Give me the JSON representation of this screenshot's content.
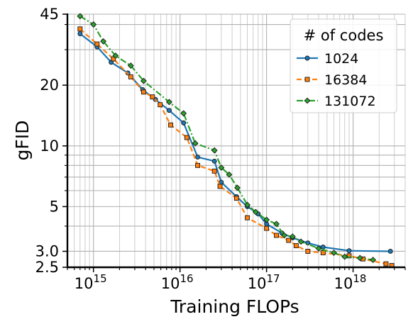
{
  "chart_data": {
    "type": "line",
    "xlabel": "Training FLOPs",
    "ylabel": "gFID",
    "xscale": "log",
    "yscale": "log",
    "xlim": [
      500000000000000.0,
      4e+18
    ],
    "ylim": [
      2.5,
      45
    ],
    "grid": true,
    "legend_title": "# of codes",
    "legend_position": "top-right",
    "x_tick_labels": [
      {
        "value": 1000000000000000.0,
        "base": "10",
        "exp": "15"
      },
      {
        "value": 1e+16,
        "base": "10",
        "exp": "16"
      },
      {
        "value": 1e+17,
        "base": "10",
        "exp": "17"
      },
      {
        "value": 1e+18,
        "base": "10",
        "exp": "18"
      }
    ],
    "y_tick_labels": [
      {
        "value": 45,
        "label": "45"
      },
      {
        "value": 20,
        "label": "20"
      },
      {
        "value": 10,
        "label": "10"
      },
      {
        "value": 5,
        "label": "5"
      },
      {
        "value": 3.0,
        "label": "3.0"
      },
      {
        "value": 2.5,
        "label": "2.5"
      }
    ],
    "series": [
      {
        "name": "1024",
        "color": "#1f77b4",
        "line_style": "solid",
        "marker": "circle",
        "points": [
          [
            700000000000000.0,
            36
          ],
          [
            1100000000000000.0,
            31
          ],
          [
            1600000000000000.0,
            26
          ],
          [
            2500000000000000.0,
            23
          ],
          [
            3700000000000000.0,
            19
          ],
          [
            5200000000000000.0,
            17
          ],
          [
            7500000000000000.0,
            15
          ],
          [
            1.1e+16,
            13
          ],
          [
            1.6e+16,
            8.8
          ],
          [
            2.5e+16,
            8.4
          ],
          [
            3e+16,
            6.6
          ],
          [
            4.5e+16,
            5.6
          ],
          [
            6e+16,
            5.0
          ],
          [
            8e+16,
            4.6
          ],
          [
            1e+17,
            4.1
          ],
          [
            1.5e+17,
            3.7
          ],
          [
            2e+17,
            3.5
          ],
          [
            3e+17,
            3.3
          ],
          [
            4.5e+17,
            3.15
          ],
          [
            9e+17,
            3.02
          ],
          [
            2.7e+18,
            3.0
          ]
        ]
      },
      {
        "name": "16384",
        "color": "#ff7f0e",
        "line_style": "dashed",
        "marker": "square",
        "points": [
          [
            700000000000000.0,
            38
          ],
          [
            1100000000000000.0,
            32
          ],
          [
            1700000000000000.0,
            27
          ],
          [
            2700000000000000.0,
            22
          ],
          [
            3800000000000000.0,
            18.5
          ],
          [
            4800000000000000.0,
            17.5
          ],
          [
            5900000000000000.0,
            16
          ],
          [
            7800000000000000.0,
            12.7
          ],
          [
            1.2e+16,
            11
          ],
          [
            1.6e+16,
            8
          ],
          [
            2.5e+16,
            7.5
          ],
          [
            2.9e+16,
            6.3
          ],
          [
            4.5e+16,
            5.5
          ],
          [
            6e+16,
            4.4
          ],
          [
            1e+17,
            3.9
          ],
          [
            1.3e+17,
            3.6
          ],
          [
            1.8e+17,
            3.4
          ],
          [
            2.2e+17,
            3.2
          ],
          [
            3e+17,
            3.0
          ],
          [
            4.5e+17,
            2.95
          ],
          [
            9e+17,
            2.85
          ],
          [
            1.3e+18,
            2.75
          ],
          [
            2.4e+18,
            2.6
          ],
          [
            2.8e+18,
            2.55
          ]
        ]
      },
      {
        "name": "131072",
        "color": "#2ca02c",
        "line_style": "dashdot",
        "marker": "diamond",
        "points": [
          [
            700000000000000.0,
            44
          ],
          [
            1000000000000000.0,
            40
          ],
          [
            1300000000000000.0,
            33
          ],
          [
            1800000000000000.0,
            28
          ],
          [
            2700000000000000.0,
            25
          ],
          [
            3800000000000000.0,
            21
          ],
          [
            7500000000000000.0,
            16.5
          ],
          [
            1.1e+16,
            14.5
          ],
          [
            1.5e+16,
            10.3
          ],
          [
            2.5e+16,
            9.5
          ],
          [
            3e+16,
            7.8
          ],
          [
            3.7e+16,
            7.2
          ],
          [
            4.6e+16,
            6.2
          ],
          [
            6e+16,
            5.1
          ],
          [
            7.5e+16,
            4.7
          ],
          [
            1e+17,
            4.3
          ],
          [
            1.3e+17,
            4.1
          ],
          [
            1.6e+17,
            3.6
          ],
          [
            2e+17,
            3.55
          ],
          [
            2.5e+17,
            3.35
          ],
          [
            4e+17,
            3.1
          ],
          [
            6e+17,
            2.95
          ],
          [
            8e+17,
            2.82
          ],
          [
            1.2e+18,
            2.78
          ],
          [
            1.7e+18,
            2.72
          ]
        ]
      }
    ]
  }
}
